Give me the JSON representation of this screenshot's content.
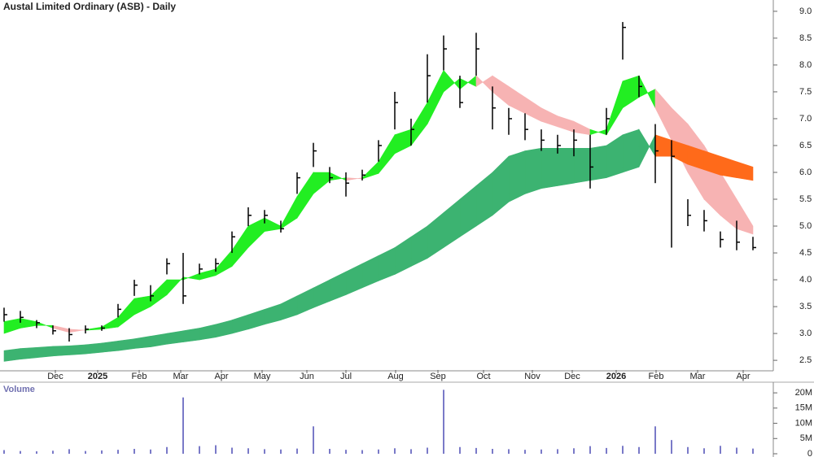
{
  "chart_data": {
    "type": "ohlc",
    "title": "Austal Limited Ordinary (ASB) - Daily",
    "volume_title": "Volume",
    "xlim": [
      -0.25,
      47.25
    ],
    "xticks": [
      {
        "value": 3.15,
        "label": "Dec"
      },
      {
        "value": 5.75,
        "label": "2025"
      },
      {
        "value": 8.3,
        "label": "Feb"
      },
      {
        "value": 10.85,
        "label": "Mar"
      },
      {
        "value": 13.35,
        "label": "Apr"
      },
      {
        "value": 15.85,
        "label": "May"
      },
      {
        "value": 18.6,
        "label": "Jun"
      },
      {
        "value": 21,
        "label": "Jul"
      },
      {
        "value": 24.05,
        "label": "Aug"
      },
      {
        "value": 26.65,
        "label": "Sep"
      },
      {
        "value": 29.45,
        "label": "Oct"
      },
      {
        "value": 32.45,
        "label": "Nov"
      },
      {
        "value": 34.9,
        "label": "Dec"
      },
      {
        "value": 37.6,
        "label": "2026"
      },
      {
        "value": 40.05,
        "label": "Feb"
      },
      {
        "value": 42.6,
        "label": "Mar"
      },
      {
        "value": 45.4,
        "label": "Apr"
      }
    ],
    "ylim": [
      2.32,
      9.18
    ],
    "yticks": [
      2.5,
      {
        "value": 3,
        "label": "3.0"
      },
      3.5,
      {
        "value": 4,
        "label": "4.0"
      },
      4.5,
      {
        "value": 5,
        "label": "5.0"
      },
      5.5,
      {
        "value": 6,
        "label": "6.0"
      },
      6.5,
      {
        "value": 7,
        "label": "7.0"
      },
      7.5,
      {
        "value": 8,
        "label": "8.0"
      },
      8.5,
      {
        "value": 9,
        "label": "9.0"
      }
    ],
    "vlim": [
      0,
      23500000
    ],
    "vticks": [
      0,
      {
        "value": 5000000,
        "label": "5M"
      },
      {
        "value": 10000000,
        "label": "10M"
      },
      {
        "value": 15000000,
        "label": "15M"
      },
      {
        "value": 20000000,
        "label": "20M"
      }
    ],
    "price_color": "#000000",
    "volume_color": "#7a7ac8",
    "high": [
      3.48,
      3.42,
      3.25,
      3.15,
      3.1,
      3.15,
      3.15,
      3.55,
      4.0,
      3.9,
      4.4,
      4.5,
      4.3,
      4.4,
      4.9,
      5.35,
      5.3,
      5.1,
      6.0,
      6.55,
      6.1,
      6.0,
      6.05,
      6.6,
      7.5,
      7.0,
      8.2,
      8.55,
      7.8,
      8.6,
      7.6,
      7.2,
      7.1,
      6.8,
      6.7,
      6.8,
      6.7,
      7.2,
      8.8,
      7.8,
      6.9,
      6.6,
      5.5,
      5.3,
      4.9,
      5.1,
      4.8
    ],
    "low": [
      3.22,
      3.2,
      3.1,
      2.98,
      2.85,
      3.0,
      3.05,
      3.3,
      3.7,
      3.6,
      4.1,
      3.55,
      4.1,
      4.15,
      4.5,
      5.0,
      5.05,
      4.88,
      5.6,
      6.1,
      5.8,
      5.55,
      5.85,
      6.2,
      6.8,
      6.5,
      7.3,
      7.9,
      7.2,
      7.8,
      6.8,
      6.7,
      6.6,
      6.4,
      6.35,
      6.3,
      5.7,
      6.7,
      8.1,
      7.4,
      5.8,
      4.6,
      5.0,
      4.9,
      4.6,
      4.55,
      4.55
    ],
    "close": [
      3.35,
      3.3,
      3.2,
      3.05,
      2.98,
      3.08,
      3.1,
      3.45,
      3.9,
      3.7,
      4.3,
      3.7,
      4.2,
      4.3,
      4.8,
      5.2,
      5.2,
      4.95,
      5.9,
      6.4,
      5.9,
      5.8,
      5.95,
      6.5,
      7.3,
      6.8,
      7.8,
      8.3,
      7.3,
      8.3,
      7.2,
      7.0,
      6.8,
      6.6,
      6.5,
      6.6,
      6.1,
      7.0,
      8.7,
      7.6,
      6.4,
      6.3,
      5.2,
      5.1,
      4.75,
      4.7,
      4.6
    ],
    "ribbons": [
      {
        "up_color": "#22ee22",
        "down_color": "#f7b3b3",
        "a": [
          3.22,
          3.28,
          3.22,
          3.1,
          3.02,
          3.07,
          3.12,
          3.3,
          3.65,
          3.7,
          4.0,
          4.0,
          4.12,
          4.2,
          4.55,
          5.0,
          5.15,
          5.0,
          5.55,
          6.0,
          6.0,
          5.85,
          5.9,
          6.2,
          6.7,
          6.8,
          7.3,
          7.9,
          7.55,
          7.8,
          7.5,
          7.25,
          7.1,
          6.95,
          6.85,
          6.75,
          6.7,
          6.8,
          7.7,
          7.8,
          7.2,
          6.6,
          6.0,
          5.5,
          5.2,
          4.95,
          4.85
        ],
        "b": [
          3.0,
          3.1,
          3.15,
          3.15,
          3.08,
          3.06,
          3.08,
          3.12,
          3.35,
          3.5,
          3.72,
          4.05,
          4.0,
          4.08,
          4.25,
          4.6,
          4.9,
          4.95,
          5.15,
          5.6,
          5.85,
          5.9,
          5.88,
          5.98,
          6.35,
          6.5,
          6.9,
          7.5,
          7.75,
          7.6,
          7.8,
          7.6,
          7.4,
          7.2,
          7.05,
          6.95,
          6.8,
          6.7,
          7.2,
          7.4,
          7.55,
          7.2,
          6.9,
          6.5,
          6.0,
          5.5,
          5.0
        ]
      },
      {
        "up_color": "#3cb371",
        "down_color": "#ff6a1a",
        "a": [
          2.68,
          2.72,
          2.74,
          2.76,
          2.77,
          2.79,
          2.82,
          2.86,
          2.9,
          2.95,
          3.0,
          3.05,
          3.1,
          3.17,
          3.25,
          3.35,
          3.45,
          3.55,
          3.7,
          3.85,
          4.0,
          4.15,
          4.3,
          4.45,
          4.6,
          4.8,
          5.0,
          5.25,
          5.5,
          5.75,
          6.0,
          6.3,
          6.4,
          6.45,
          6.45,
          6.45,
          6.45,
          6.5,
          6.7,
          6.8,
          6.3,
          6.3,
          6.15,
          6.05,
          5.95,
          5.9,
          5.85
        ],
        "b": [
          2.48,
          2.52,
          2.55,
          2.58,
          2.6,
          2.62,
          2.65,
          2.68,
          2.72,
          2.75,
          2.8,
          2.84,
          2.88,
          2.93,
          3.0,
          3.08,
          3.17,
          3.25,
          3.35,
          3.48,
          3.6,
          3.72,
          3.85,
          3.98,
          4.1,
          4.25,
          4.4,
          4.6,
          4.8,
          5.0,
          5.2,
          5.45,
          5.6,
          5.7,
          5.75,
          5.8,
          5.85,
          5.9,
          6.0,
          6.1,
          6.7,
          6.6,
          6.5,
          6.4,
          6.3,
          6.2,
          6.1
        ]
      }
    ],
    "volume": [
      1200000,
      900000,
      800000,
      1000000,
      1500000,
      900000,
      1100000,
      1300000,
      1600000,
      1400000,
      2200000,
      18500000,
      2500000,
      2800000,
      2000000,
      1800000,
      1500000,
      1400000,
      1700000,
      9000000,
      1600000,
      1300000,
      1200000,
      1400000,
      1800000,
      1500000,
      2000000,
      21000000,
      2200000,
      1900000,
      1600000,
      1500000,
      1300000,
      1400000,
      1500000,
      1800000,
      2500000,
      1900000,
      2600000,
      2200000,
      9000000,
      4500000,
      2200000,
      1800000,
      2600000,
      2000000,
      1700000
    ]
  }
}
